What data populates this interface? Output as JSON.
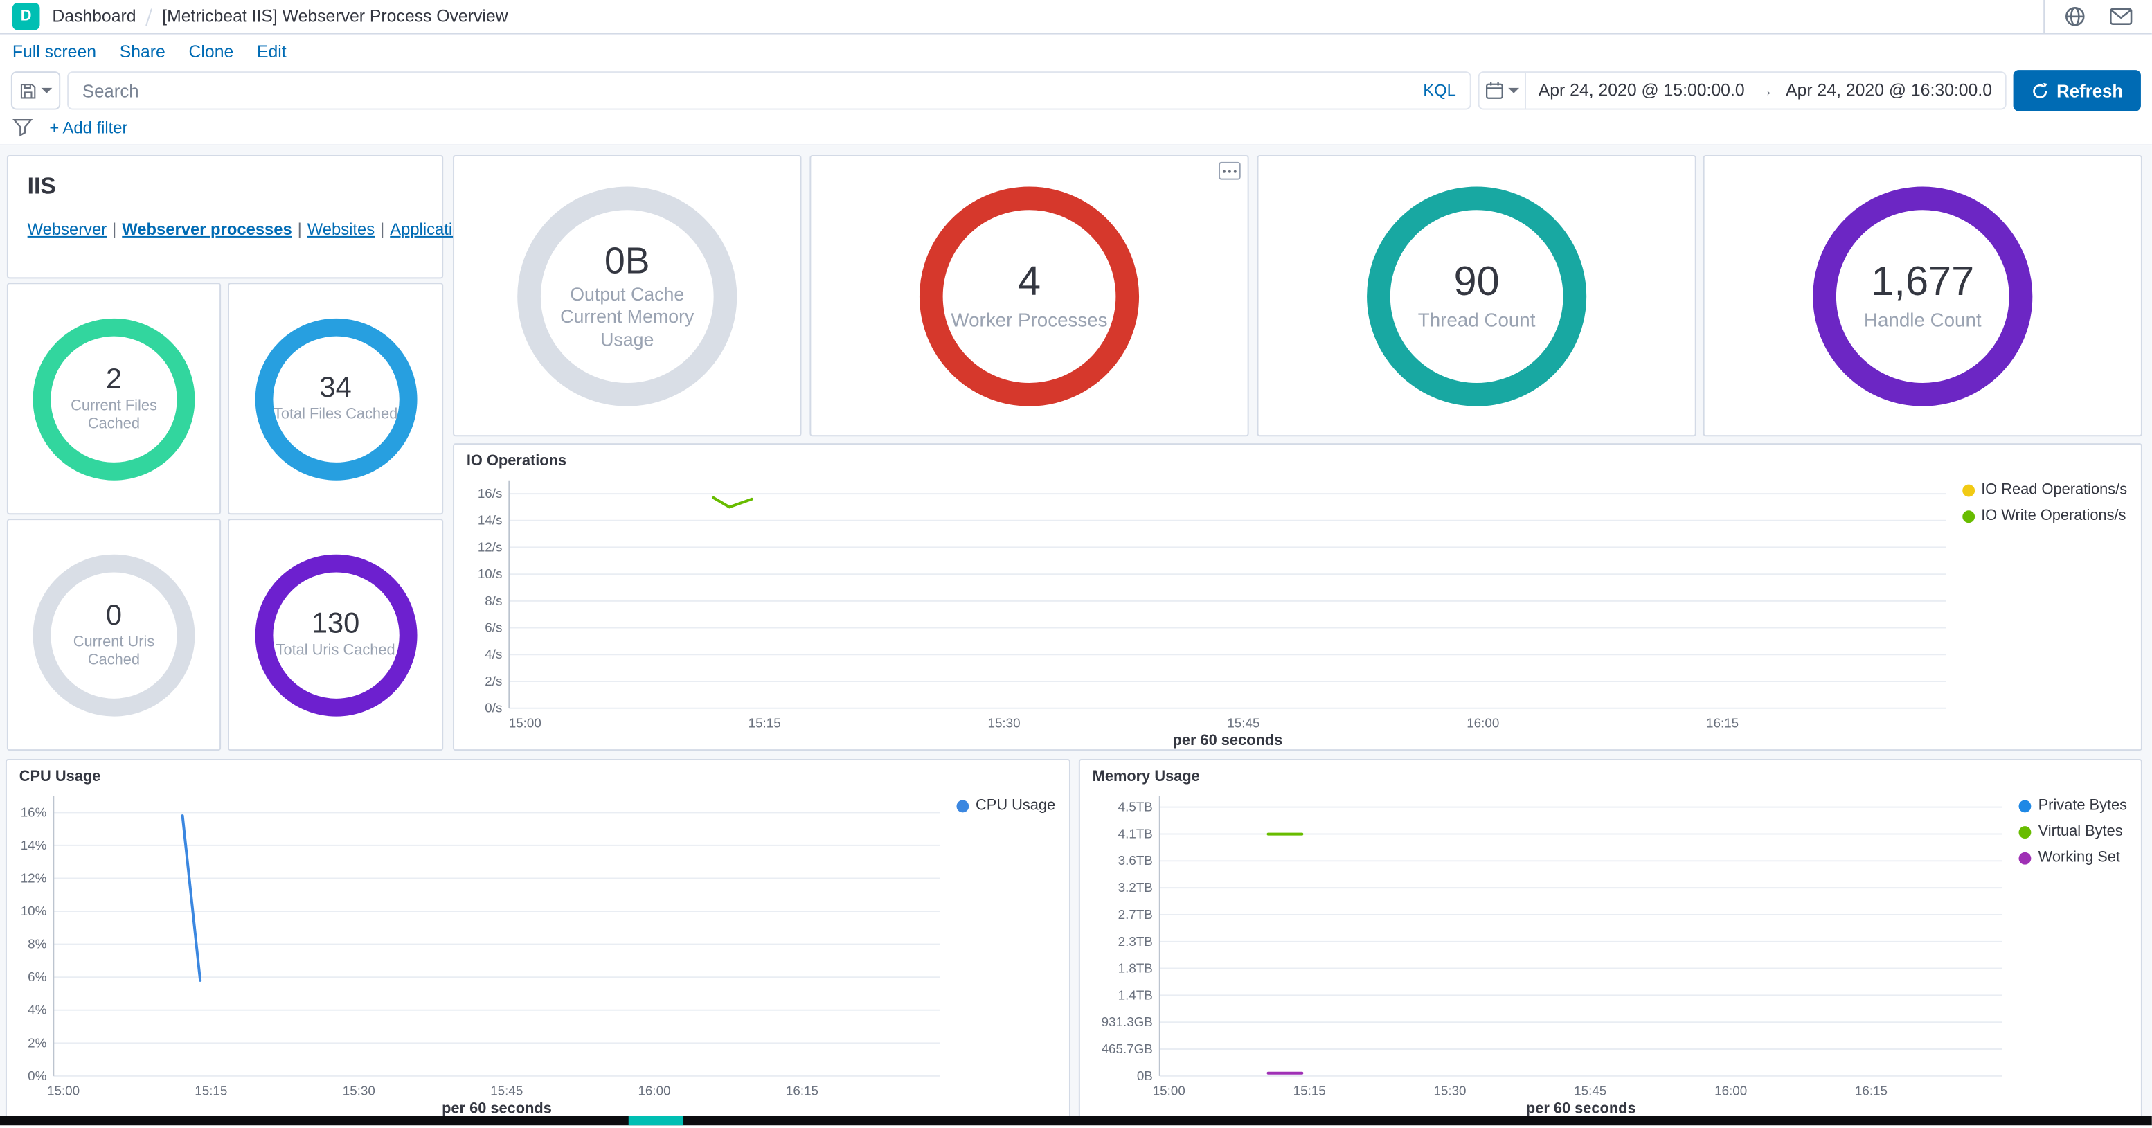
{
  "brand": {
    "primary_blue": "#006bb4",
    "logo_teal": "#00bfb3"
  },
  "header": {
    "space_initial": "D",
    "breadcrumb": "Dashboard",
    "title": "[Metricbeat IIS] Webserver Process Overview"
  },
  "toolbar": {
    "items": [
      "Full screen",
      "Share",
      "Clone",
      "Edit"
    ]
  },
  "query_bar": {
    "search_placeholder": "Search",
    "language": "KQL",
    "date_from": "Apr 24, 2020 @ 15:00:00.0",
    "range_arrow": "→",
    "date_to": "Apr 24, 2020 @ 16:30:00.0",
    "refresh_label": "Refresh"
  },
  "filter_bar": {
    "add_filter_label": "+ Add filter"
  },
  "markdown_panel": {
    "title": "IIS",
    "links": [
      {
        "label": "Webserver"
      },
      {
        "label": "Webserver processes",
        "active": true
      },
      {
        "label": "Websites"
      },
      {
        "label": "Application Pools"
      }
    ]
  },
  "gauges": [
    {
      "value": "2",
      "label": "Current Files Cached",
      "color": "#32d69e"
    },
    {
      "value": "34",
      "label": "Total Files Cached",
      "color": "#279fe0"
    },
    {
      "value": "0",
      "label": "Current Uris Cached",
      "color": "#d9dee6"
    },
    {
      "value": "130",
      "label": "Total Uris Cached",
      "color": "#6d20cf"
    },
    {
      "value": "0B",
      "label": "Output Cache Current Memory Usage",
      "color": "#d9dee6"
    },
    {
      "value": "4",
      "label": "Worker Processes",
      "color": "#d6382c"
    },
    {
      "value": "90",
      "label": "Thread Count",
      "color": "#18a8a2"
    },
    {
      "value": "1,677",
      "label": "Handle Count",
      "color": "#6c26c4"
    }
  ],
  "chart_data": [
    {
      "type": "line",
      "title": "IO Operations",
      "xlabel": "per 60 seconds",
      "x_domain": [
        -1,
        89
      ],
      "y_domain": [
        0,
        17
      ],
      "x_ticks": [
        {
          "t": 0,
          "label": "15:00"
        },
        {
          "t": 15,
          "label": "15:15"
        },
        {
          "t": 30,
          "label": "15:30"
        },
        {
          "t": 45,
          "label": "15:45"
        },
        {
          "t": 60,
          "label": "16:00"
        },
        {
          "t": 75,
          "label": "16:15"
        }
      ],
      "y_ticks": [
        {
          "v": 0,
          "label": "0/s"
        },
        {
          "v": 2,
          "label": "2/s"
        },
        {
          "v": 4,
          "label": "4/s"
        },
        {
          "v": 6,
          "label": "6/s"
        },
        {
          "v": 8,
          "label": "8/s"
        },
        {
          "v": 10,
          "label": "10/s"
        },
        {
          "v": 12,
          "label": "12/s"
        },
        {
          "v": 14,
          "label": "14/s"
        },
        {
          "v": 16,
          "label": "16/s"
        }
      ],
      "legend_position": "right",
      "grid": "horizontal",
      "series": [
        {
          "name": "IO Read Operations/s",
          "color": "#f1ca14",
          "points": []
        },
        {
          "name": "IO Write Operations/s",
          "color": "#68bc00",
          "points": [
            [
              11.8,
              15.7
            ],
            [
              12.8,
              15.0
            ],
            [
              14.2,
              15.6
            ]
          ]
        }
      ]
    },
    {
      "type": "line",
      "title": "CPU Usage",
      "xlabel": "per 60 seconds",
      "x_domain": [
        -1,
        89
      ],
      "y_domain": [
        0,
        17
      ],
      "x_ticks": [
        {
          "t": 0,
          "label": "15:00"
        },
        {
          "t": 15,
          "label": "15:15"
        },
        {
          "t": 30,
          "label": "15:30"
        },
        {
          "t": 45,
          "label": "15:45"
        },
        {
          "t": 60,
          "label": "16:00"
        },
        {
          "t": 75,
          "label": "16:15"
        }
      ],
      "y_ticks": [
        {
          "v": 0,
          "label": "0%"
        },
        {
          "v": 2,
          "label": "2%"
        },
        {
          "v": 4,
          "label": "4%"
        },
        {
          "v": 6,
          "label": "6%"
        },
        {
          "v": 8,
          "label": "8%"
        },
        {
          "v": 10,
          "label": "10%"
        },
        {
          "v": 12,
          "label": "12%"
        },
        {
          "v": 14,
          "label": "14%"
        },
        {
          "v": 16,
          "label": "16%"
        }
      ],
      "legend_position": "right",
      "grid": "horizontal",
      "series": [
        {
          "name": "CPU Usage",
          "color": "#3b87e0",
          "points": [
            [
              12.1,
              15.8
            ],
            [
              13.9,
              5.8
            ]
          ]
        }
      ]
    },
    {
      "type": "line",
      "title": "Memory Usage",
      "xlabel": "per 60 seconds",
      "x_domain": [
        -1,
        89
      ],
      "y_domain": [
        0,
        4.85
      ],
      "x_ticks": [
        {
          "t": 0,
          "label": "15:00"
        },
        {
          "t": 15,
          "label": "15:15"
        },
        {
          "t": 30,
          "label": "15:30"
        },
        {
          "t": 45,
          "label": "15:45"
        },
        {
          "t": 60,
          "label": "16:00"
        },
        {
          "t": 75,
          "label": "16:15"
        }
      ],
      "y_ticks": [
        {
          "v": 0,
          "label": "0B"
        },
        {
          "v": 0.466,
          "label": "465.7GB"
        },
        {
          "v": 0.931,
          "label": "931.3GB"
        },
        {
          "v": 1.397,
          "label": "1.4TB"
        },
        {
          "v": 1.863,
          "label": "1.8TB"
        },
        {
          "v": 2.328,
          "label": "2.3TB"
        },
        {
          "v": 2.794,
          "label": "2.7TB"
        },
        {
          "v": 3.26,
          "label": "3.2TB"
        },
        {
          "v": 3.725,
          "label": "3.6TB"
        },
        {
          "v": 4.191,
          "label": "4.1TB"
        },
        {
          "v": 4.657,
          "label": "4.5TB"
        }
      ],
      "legend_position": "right",
      "grid": "horizontal",
      "units": "TB",
      "series": [
        {
          "name": "Private Bytes",
          "color": "#1e88e5",
          "points": []
        },
        {
          "name": "Virtual Bytes",
          "color": "#68bc00",
          "points": [
            [
              10.6,
              4.19
            ],
            [
              14.2,
              4.19
            ]
          ]
        },
        {
          "name": "Working Set",
          "color": "#9f30b5",
          "points": [
            [
              10.6,
              0.05
            ],
            [
              14.2,
              0.05
            ]
          ]
        }
      ]
    }
  ]
}
